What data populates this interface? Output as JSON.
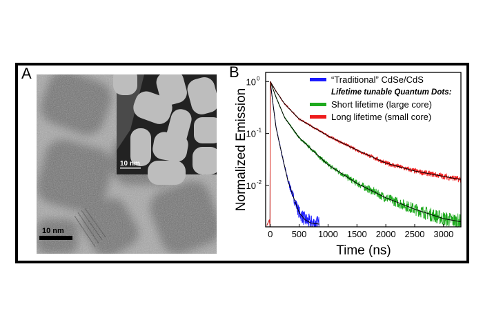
{
  "panels": {
    "a_label": "A",
    "b_label": "B",
    "tem_scale_bar": "10 nm",
    "inset_scale_bar": "10 nm"
  },
  "chart_data": {
    "type": "line",
    "xlabel": "Time (ns)",
    "ylabel": "Normalized Emission",
    "xlim": [
      -80,
      3300
    ],
    "ylim": [
      0.0016,
      1.5
    ],
    "y_scale": "log",
    "x_ticks": [
      "0",
      "500",
      "1000",
      "1500",
      "2000",
      "2500",
      "3000"
    ],
    "x_tick_values": [
      0,
      500,
      1000,
      1500,
      2000,
      2500,
      3000
    ],
    "y_ticks": [
      {
        "base": "10",
        "exp": "0",
        "value": 1
      },
      {
        "base": "10",
        "exp": "-1",
        "value": 0.1
      },
      {
        "base": "10",
        "exp": "-2",
        "value": 0.01
      }
    ],
    "grid": false,
    "legend_position": "top-right",
    "legend_subheading": "Lifetime tunable Quantum Dots:",
    "fit_color": "#000000",
    "series": [
      {
        "name": "“Traditional” CdSe/CdS",
        "color": "#1a1aff",
        "x": [
          0,
          50,
          100,
          200,
          300,
          400,
          500,
          600,
          700,
          850
        ],
        "y": [
          1,
          0.35,
          0.13,
          0.04,
          0.013,
          0.006,
          0.003,
          0.0022,
          0.0019,
          0.0018
        ]
      },
      {
        "name": "Short lifetime (large core)",
        "color": "#1faa1f",
        "x": [
          0,
          100,
          250,
          500,
          1000,
          1500,
          2000,
          2500,
          3000,
          3300
        ],
        "y": [
          1,
          0.5,
          0.2,
          0.083,
          0.025,
          0.011,
          0.0058,
          0.0035,
          0.0023,
          0.002
        ]
      },
      {
        "name": "Long lifetime (small core)",
        "color": "#ee1c1c",
        "x": [
          0,
          100,
          250,
          500,
          1000,
          1500,
          2000,
          2500,
          3000,
          3300
        ],
        "y": [
          1,
          0.65,
          0.37,
          0.19,
          0.09,
          0.048,
          0.027,
          0.019,
          0.015,
          0.013
        ]
      }
    ]
  }
}
